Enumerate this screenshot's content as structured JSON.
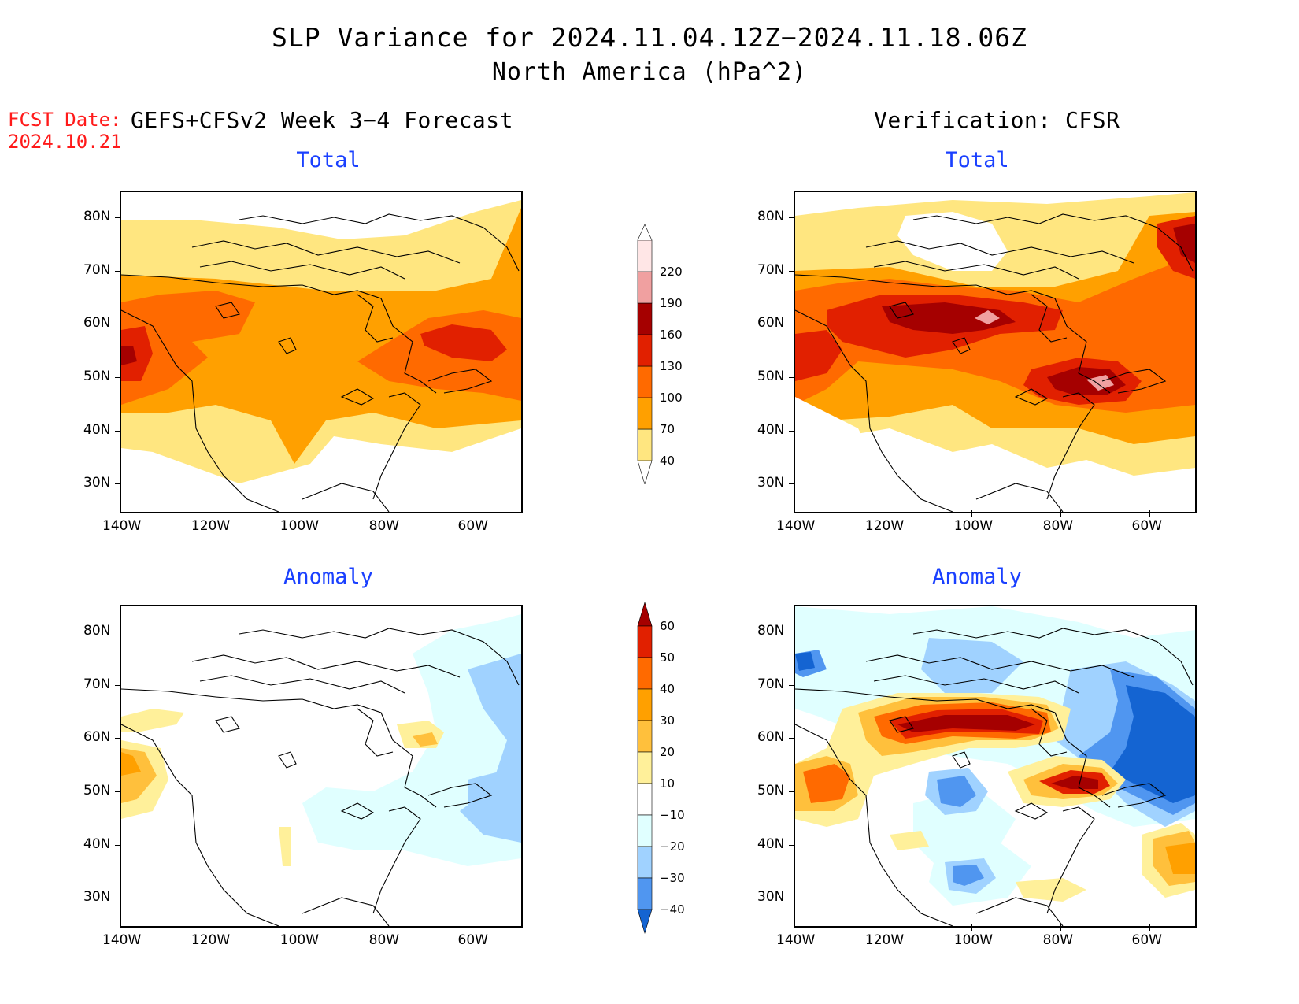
{
  "title_line1": "SLP Variance for 2024.11.04.12Z−2024.11.18.06Z",
  "title_line2": "North America (hPa^2)",
  "fcst_date_label": "FCST Date:",
  "fcst_date_value": "2024.10.21",
  "left_column_title": "GEFS+CFSv2 Week 3−4 Forecast",
  "right_column_title": "Verification: CFSR",
  "panels": {
    "forecast_total": {
      "subtitle": "Total"
    },
    "verif_total": {
      "subtitle": "Total"
    },
    "forecast_anomaly": {
      "subtitle": "Anomaly"
    },
    "verif_anomaly": {
      "subtitle": "Anomaly"
    }
  },
  "axes": {
    "lat_labels": [
      "80N",
      "70N",
      "60N",
      "50N",
      "40N",
      "30N"
    ],
    "lon_labels": [
      "140W",
      "120W",
      "100W",
      "80W",
      "60W"
    ],
    "lat_range": [
      25,
      85
    ],
    "lon_range": [
      -140,
      -50
    ]
  },
  "colorbars": {
    "total": {
      "levels": [
        "40",
        "70",
        "100",
        "130",
        "160",
        "190",
        "220"
      ],
      "colors": [
        "#ffe680",
        "#ffa000",
        "#ff6a00",
        "#e12000",
        "#a50000",
        "#f0a0a0",
        "#ffe6e6"
      ]
    },
    "anomaly": {
      "levels": [
        "60",
        "50",
        "40",
        "30",
        "20",
        "10",
        "−10",
        "−20",
        "−30",
        "−40"
      ],
      "colors": [
        "#a50000",
        "#e12000",
        "#ff6a00",
        "#ffa000",
        "#ffc03c",
        "#fff09a",
        "#ffffff",
        "#e0ffff",
        "#a0d2ff",
        "#5096f0",
        "#1464d2"
      ]
    }
  },
  "map_colors": {
    "outline": "#000000"
  }
}
